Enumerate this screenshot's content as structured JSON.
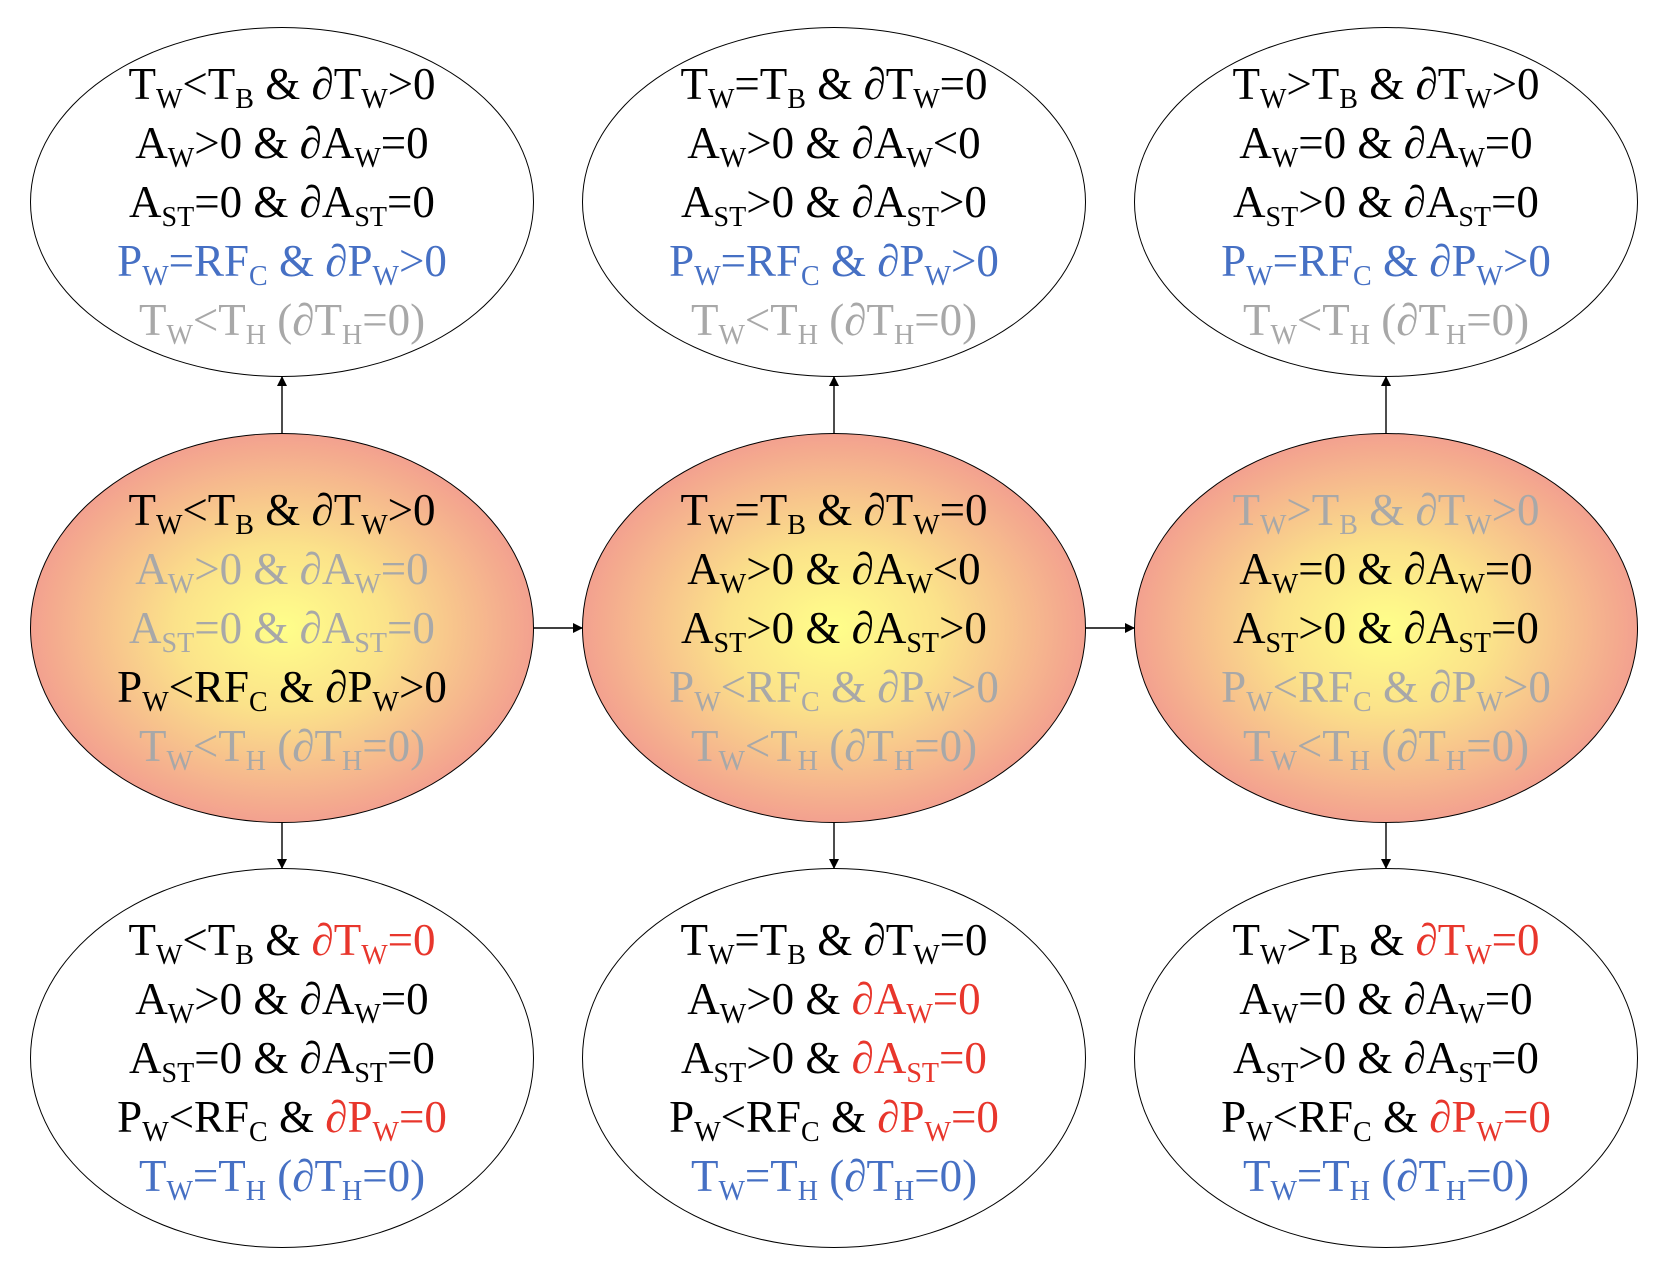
{
  "colors": {
    "black": "#000000",
    "blue": "#4670c4",
    "gray": "#a8a8a8",
    "red": "#e8362c",
    "node_fill_center": "#ffff8a",
    "node_fill_edge": "#ee6b8d",
    "edge": "#000000"
  },
  "nodes": [
    {
      "id": "top-left",
      "filled": false,
      "lines": [
        [
          {
            "t": "T<sub>W</sub>&lt;T<sub>B</sub> &amp; ∂T<sub>W</sub>&gt;0",
            "c": "black"
          }
        ],
        [
          {
            "t": "A<sub>W</sub>&gt;0 &amp; ∂A<sub>W</sub>=0",
            "c": "black"
          }
        ],
        [
          {
            "t": "A<sub>ST</sub>=0 &amp; ∂A<sub>ST</sub>=0",
            "c": "black"
          }
        ],
        [
          {
            "t": "P<sub>W</sub>=RF<sub>C</sub> &amp; ∂P<sub>W</sub>&gt;0",
            "c": "blue"
          }
        ],
        [
          {
            "t": "T<sub>W</sub>&lt;T<sub>H</sub> (∂T<sub>H</sub>=0)",
            "c": "gray"
          }
        ]
      ]
    },
    {
      "id": "top-center",
      "filled": false,
      "lines": [
        [
          {
            "t": "T<sub>W</sub>=T<sub>B</sub> &amp; ∂T<sub>W</sub>=0",
            "c": "black"
          }
        ],
        [
          {
            "t": "A<sub>W</sub>&gt;0 &amp; ∂A<sub>W</sub>&lt;0",
            "c": "black"
          }
        ],
        [
          {
            "t": "A<sub>ST</sub>&gt;0 &amp; ∂A<sub>ST</sub>&gt;0",
            "c": "black"
          }
        ],
        [
          {
            "t": "P<sub>W</sub>=RF<sub>C</sub> &amp; ∂P<sub>W</sub>&gt;0",
            "c": "blue"
          }
        ],
        [
          {
            "t": "T<sub>W</sub>&lt;T<sub>H</sub> (∂T<sub>H</sub>=0)",
            "c": "gray"
          }
        ]
      ]
    },
    {
      "id": "top-right",
      "filled": false,
      "lines": [
        [
          {
            "t": "T<sub>W</sub>&gt;T<sub>B</sub> &amp; ∂T<sub>W</sub>&gt;0",
            "c": "black"
          }
        ],
        [
          {
            "t": "A<sub>W</sub>=0 &amp; ∂A<sub>W</sub>=0",
            "c": "black"
          }
        ],
        [
          {
            "t": "A<sub>ST</sub>&gt;0 &amp; ∂A<sub>ST</sub>=0",
            "c": "black"
          }
        ],
        [
          {
            "t": "P<sub>W</sub>=RF<sub>C</sub> &amp; ∂P<sub>W</sub>&gt;0",
            "c": "blue"
          }
        ],
        [
          {
            "t": "T<sub>W</sub>&lt;T<sub>H</sub> (∂T<sub>H</sub>=0)",
            "c": "gray"
          }
        ]
      ]
    },
    {
      "id": "mid-left",
      "filled": true,
      "lines": [
        [
          {
            "t": "T<sub>W</sub>&lt;T<sub>B</sub> &amp; ∂T<sub>W</sub>&gt;0",
            "c": "black"
          }
        ],
        [
          {
            "t": "A<sub>W</sub>&gt;0 &amp; ∂A<sub>W</sub>=0",
            "c": "gray"
          }
        ],
        [
          {
            "t": "A<sub>ST</sub>=0 &amp; ∂A<sub>ST</sub>=0",
            "c": "gray"
          }
        ],
        [
          {
            "t": "P<sub>W</sub>&lt;RF<sub>C</sub> &amp; ∂P<sub>W</sub>&gt;0",
            "c": "black"
          }
        ],
        [
          {
            "t": "T<sub>W</sub>&lt;T<sub>H</sub> (∂T<sub>H</sub>=0)",
            "c": "gray"
          }
        ]
      ]
    },
    {
      "id": "mid-center",
      "filled": true,
      "lines": [
        [
          {
            "t": "T<sub>W</sub>=T<sub>B</sub> &amp; ∂T<sub>W</sub>=0",
            "c": "black"
          }
        ],
        [
          {
            "t": "A<sub>W</sub>&gt;0 &amp; ∂A<sub>W</sub>&lt;0",
            "c": "black"
          }
        ],
        [
          {
            "t": "A<sub>ST</sub>&gt;0 &amp; ∂A<sub>ST</sub>&gt;0",
            "c": "black"
          }
        ],
        [
          {
            "t": "P<sub>W</sub>&lt;RF<sub>C</sub> &amp; ∂P<sub>W</sub>&gt;0",
            "c": "gray"
          }
        ],
        [
          {
            "t": "T<sub>W</sub>&lt;T<sub>H</sub> (∂T<sub>H</sub>=0)",
            "c": "gray"
          }
        ]
      ]
    },
    {
      "id": "mid-right",
      "filled": true,
      "lines": [
        [
          {
            "t": "T<sub>W</sub>&gt;T<sub>B</sub> &amp; ∂T<sub>W</sub>&gt;0",
            "c": "gray"
          }
        ],
        [
          {
            "t": "A<sub>W</sub>=0 &amp; ∂A<sub>W</sub>=0",
            "c": "black"
          }
        ],
        [
          {
            "t": "A<sub>ST</sub>&gt;0 &amp; ∂A<sub>ST</sub>=0",
            "c": "black"
          }
        ],
        [
          {
            "t": "P<sub>W</sub>&lt;RF<sub>C</sub> &amp; ∂P<sub>W</sub>&gt;0",
            "c": "gray"
          }
        ],
        [
          {
            "t": "T<sub>W</sub>&lt;T<sub>H</sub> (∂T<sub>H</sub>=0)",
            "c": "gray"
          }
        ]
      ]
    },
    {
      "id": "bottom-left",
      "filled": false,
      "lines": [
        [
          {
            "t": "T<sub>W</sub>&lt;T<sub>B</sub> &amp; ",
            "c": "black"
          },
          {
            "t": "∂T<sub>W</sub>=0",
            "c": "red"
          }
        ],
        [
          {
            "t": "A<sub>W</sub>&gt;0 &amp; ∂A<sub>W</sub>=0",
            "c": "black"
          }
        ],
        [
          {
            "t": "A<sub>ST</sub>=0 &amp; ∂A<sub>ST</sub>=0",
            "c": "black"
          }
        ],
        [
          {
            "t": "P<sub>W</sub>&lt;RF<sub>C</sub> &amp; ",
            "c": "black"
          },
          {
            "t": "∂P<sub>W</sub>=0",
            "c": "red"
          }
        ],
        [
          {
            "t": "T<sub>W</sub>=T<sub>H</sub> (∂T<sub>H</sub>=0)",
            "c": "blue"
          }
        ]
      ]
    },
    {
      "id": "bottom-center",
      "filled": false,
      "lines": [
        [
          {
            "t": "T<sub>W</sub>=T<sub>B</sub> &amp; ∂T<sub>W</sub>=0",
            "c": "black"
          }
        ],
        [
          {
            "t": "A<sub>W</sub>&gt;0 &amp; ",
            "c": "black"
          },
          {
            "t": "∂A<sub>W</sub>=0",
            "c": "red"
          }
        ],
        [
          {
            "t": "A<sub>ST</sub>&gt;0 &amp; ",
            "c": "black"
          },
          {
            "t": "∂A<sub>ST</sub>=0",
            "c": "red"
          }
        ],
        [
          {
            "t": "P<sub>W</sub>&lt;RF<sub>C</sub> &amp; ",
            "c": "black"
          },
          {
            "t": "∂P<sub>W</sub>=0",
            "c": "red"
          }
        ],
        [
          {
            "t": "T<sub>W</sub>=T<sub>H</sub> (∂T<sub>H</sub>=0)",
            "c": "blue"
          }
        ]
      ]
    },
    {
      "id": "bottom-right",
      "filled": false,
      "lines": [
        [
          {
            "t": "T<sub>W</sub>&gt;T<sub>B</sub> &amp; ",
            "c": "black"
          },
          {
            "t": "∂T<sub>W</sub>=0",
            "c": "red"
          }
        ],
        [
          {
            "t": "A<sub>W</sub>=0 &amp; ∂A<sub>W</sub>=0",
            "c": "black"
          }
        ],
        [
          {
            "t": "A<sub>ST</sub>&gt;0 &amp; ∂A<sub>ST</sub>=0",
            "c": "black"
          }
        ],
        [
          {
            "t": "P<sub>W</sub>&lt;RF<sub>C</sub> &amp; ",
            "c": "black"
          },
          {
            "t": "∂P<sub>W</sub>=0",
            "c": "red"
          }
        ],
        [
          {
            "t": "T<sub>W</sub>=T<sub>H</sub> (∂T<sub>H</sub>=0)",
            "c": "blue"
          }
        ]
      ]
    }
  ],
  "edges": [
    {
      "from": "mid-left",
      "to": "top-left"
    },
    {
      "from": "mid-center",
      "to": "top-center"
    },
    {
      "from": "mid-right",
      "to": "top-right"
    },
    {
      "from": "mid-left",
      "to": "mid-center"
    },
    {
      "from": "mid-center",
      "to": "mid-right"
    },
    {
      "from": "mid-left",
      "to": "bottom-left"
    },
    {
      "from": "mid-center",
      "to": "bottom-center"
    },
    {
      "from": "mid-right",
      "to": "bottom-right"
    }
  ]
}
